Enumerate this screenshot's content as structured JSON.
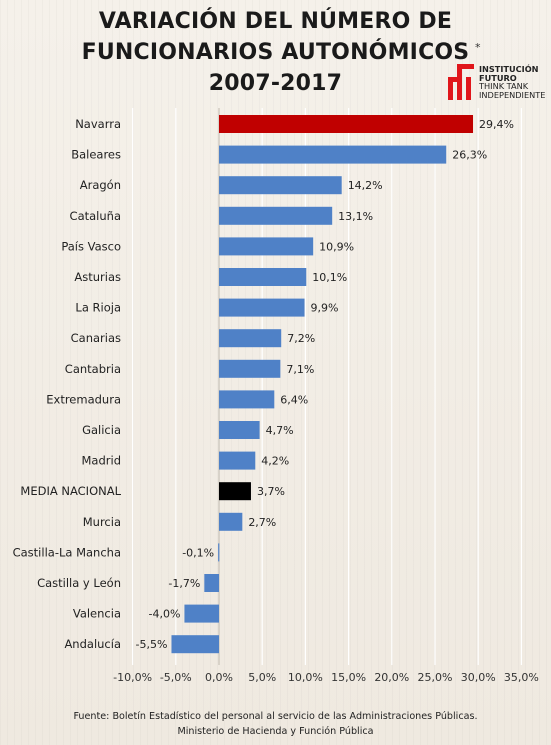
{
  "title": {
    "line1": "VARIACIÓN DEL NÚMERO DE",
    "line2": "FUNCIONARIOS AUTONÓMICOS",
    "line3": "2007-2017"
  },
  "logo": {
    "line1": "INSTITUCIÓN",
    "line2": "FUTURO",
    "line3": "THINK TANK",
    "line4": "INDEPENDIENTE",
    "star": "*"
  },
  "footer": {
    "line1": "Fuente: Boletín Estadístico del personal al servicio de las Administraciones Públicas.",
    "line2": "Ministerio de Hacienda y Función Pública"
  },
  "colors": {
    "default_bar": "#4f81c7",
    "highlight_bar": "#c00000",
    "national_bar": "#000000",
    "logo_red": "#e0161b"
  },
  "chart_data": {
    "type": "bar",
    "orientation": "horizontal",
    "categories": [
      "Navarra",
      "Baleares",
      "Aragón",
      "Cataluña",
      "País Vasco",
      "Asturias",
      "La Rioja",
      "Canarias",
      "Cantabria",
      "Extremadura",
      "Galicia",
      "Madrid",
      "MEDIA NACIONAL",
      "Murcia",
      "Castilla-La Mancha",
      "Castilla y León",
      "Valencia",
      "Andalucía"
    ],
    "values": [
      29.4,
      26.3,
      14.2,
      13.1,
      10.9,
      10.1,
      9.9,
      7.2,
      7.1,
      6.4,
      4.7,
      4.2,
      3.7,
      2.7,
      -0.1,
      -1.7,
      -4.0,
      -5.5
    ],
    "value_labels": [
      "29,4%",
      "26,3%",
      "14,2%",
      "13,1%",
      "10,9%",
      "10,1%",
      "9,9%",
      "7,2%",
      "7,1%",
      "6,4%",
      "4,7%",
      "4,2%",
      "3,7%",
      "2,7%",
      "-0,1%",
      "-1,7%",
      "-4,0%",
      "-5,5%"
    ],
    "bar_colors": [
      "#c00000",
      "#4f81c7",
      "#4f81c7",
      "#4f81c7",
      "#4f81c7",
      "#4f81c7",
      "#4f81c7",
      "#4f81c7",
      "#4f81c7",
      "#4f81c7",
      "#4f81c7",
      "#4f81c7",
      "#000000",
      "#4f81c7",
      "#4f81c7",
      "#4f81c7",
      "#4f81c7",
      "#4f81c7"
    ],
    "xlim": [
      -10,
      35
    ],
    "xticks": [
      -10,
      -5,
      0,
      5,
      10,
      15,
      20,
      25,
      30,
      35
    ],
    "xtick_labels": [
      "-10,0%",
      "-5,0%",
      "0,0%",
      "5,0%",
      "10,0%",
      "15,0%",
      "20,0%",
      "25,0%",
      "30,0%",
      "35,0%"
    ],
    "grid": true,
    "legend": false
  }
}
